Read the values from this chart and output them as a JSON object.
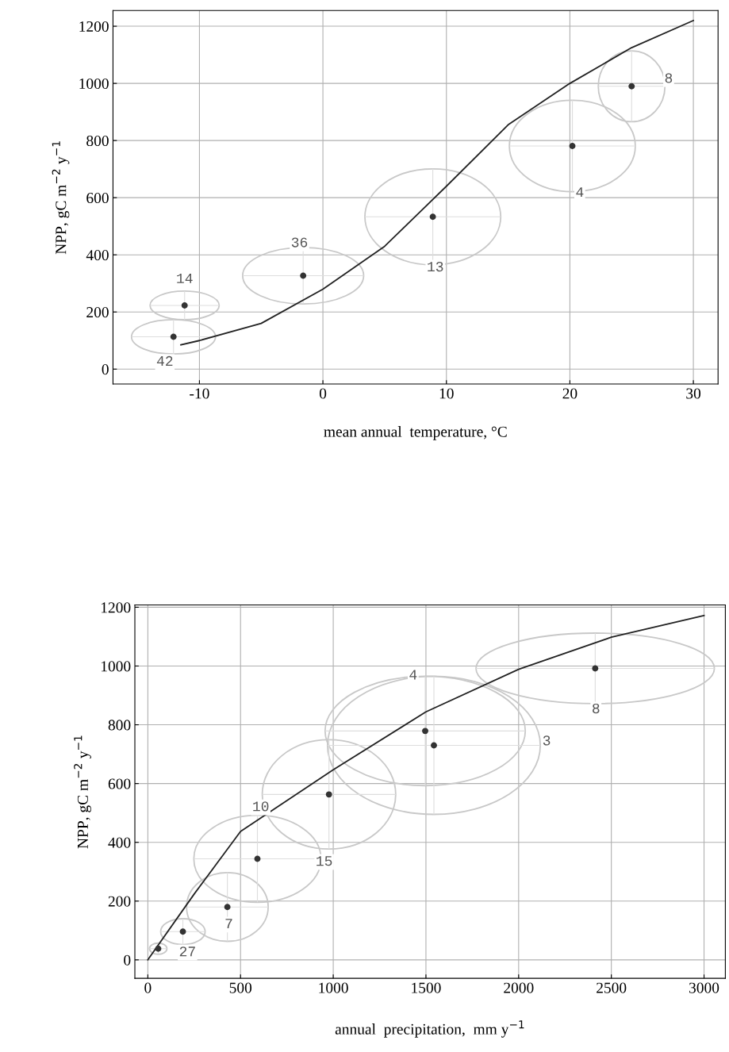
{
  "chart_data": [
    {
      "type": "scatter",
      "xlabel": "mean annual  temperature, °C",
      "ylabel": "NPP, gC m$^{−2}$ y$^{−1}$",
      "xlim": [
        -17,
        32
      ],
      "ylim": [
        -52,
        1255
      ],
      "xticks": [
        -10,
        0,
        10,
        20,
        30
      ],
      "yticks": [
        0,
        200,
        400,
        600,
        800,
        1000,
        1200
      ],
      "grid": true,
      "series": [
        {
          "color": "#333333",
          "marker": "circle",
          "x": [
            -12.1,
            -11.2,
            -1.6,
            8.9,
            20.2,
            25.0
          ],
          "values": [
            113,
            223,
            327,
            533,
            781,
            990
          ],
          "xerrors": [
            3.4,
            2.8,
            4.9,
            5.5,
            5.1,
            2.7
          ],
          "errors": [
            60,
            50,
            99,
            168,
            160,
            124
          ]
        },
        {
          "type": "line",
          "color": "#222222",
          "x": [
            -11.5,
            -10,
            -5,
            0,
            5,
            10,
            15,
            20,
            25,
            30
          ],
          "values": [
            85,
            100,
            160,
            280,
            430,
            640,
            855,
            1000,
            1125,
            1220
          ]
        }
      ],
      "annotations": [
        {
          "text": "42",
          "x": -12.8,
          "y": 25
        },
        {
          "text": "14",
          "x": -11.2,
          "y": 314
        },
        {
          "text": "36",
          "x": -1.9,
          "y": 440
        },
        {
          "text": "13",
          "x": 9.1,
          "y": 355
        },
        {
          "text": "4",
          "x": 20.8,
          "y": 616
        },
        {
          "text": "8",
          "x": 28.0,
          "y": 1015
        }
      ]
    },
    {
      "type": "scatter",
      "xlabel": "annual  precipitation,  mm y$^{−1}$",
      "ylabel": "NPP, gC m$^{−2}$ y$^{−1}$",
      "xlim": [
        -70,
        3115
      ],
      "ylim": [
        -63,
        1208
      ],
      "xticks": [
        0,
        500,
        1000,
        1500,
        2000,
        2500,
        3000
      ],
      "yticks": [
        0,
        200,
        400,
        600,
        800,
        1000,
        1200
      ],
      "grid": true,
      "series": [
        {
          "color": "#333333",
          "marker": "circle",
          "x": [
            56,
            189,
            429,
            591,
            977,
            1496,
            1543,
            2413
          ],
          "values": [
            38,
            96,
            180,
            344,
            563,
            779,
            730,
            992
          ],
          "xerrors": [
            47,
            120,
            220,
            343,
            360,
            540,
            574,
            643
          ],
          "errors": [
            19,
            44,
            117,
            148,
            186,
            186,
            235,
            120
          ]
        },
        {
          "type": "line",
          "color": "#222222",
          "x": [
            0,
            250,
            500,
            1000,
            1500,
            2000,
            2500,
            3000
          ],
          "values": [
            0,
            224,
            437,
            647,
            844,
            989,
            1098,
            1172
          ]
        }
      ],
      "annotations": [
        {
          "text": "27",
          "x": 214,
          "y": 25
        },
        {
          "text": "7",
          "x": 437,
          "y": 120
        },
        {
          "text": "15",
          "x": 951,
          "y": 333
        },
        {
          "text": "10",
          "x": 609,
          "y": 519
        },
        {
          "text": "4",
          "x": 1431,
          "y": 967
        },
        {
          "text": "3",
          "x": 2151,
          "y": 743
        },
        {
          "text": "8",
          "x": 2417,
          "y": 852
        }
      ]
    }
  ]
}
